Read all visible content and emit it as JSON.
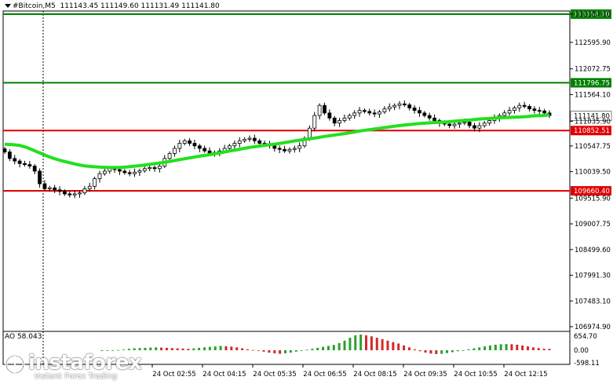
{
  "header": {
    "symbol": "#Bitcoin,M5",
    "ohlc": "111143.45 111149.60 111131.49 111141.80"
  },
  "ao": {
    "label": "AO 58.043",
    "scale": [
      "654.70",
      "0.00",
      "-598.11"
    ]
  },
  "watermark": {
    "brand": "instaforex",
    "tagline": "Instant Forex Trading"
  },
  "chart_data": {
    "type": "candlestick",
    "title": "",
    "y_ticks": [
      "113154.10",
      "112595.90",
      "112072.75",
      "111564.10",
      "111035.90",
      "110547.75",
      "110039.50",
      "109515.90",
      "109007.75",
      "108499.60",
      "107991.30",
      "107483.10",
      "106974.90"
    ],
    "y_tick_values": [
      113154.1,
      112595.9,
      112072.75,
      111564.1,
      111035.9,
      110547.75,
      110039.5,
      109515.9,
      109007.75,
      108499.6,
      107991.3,
      107483.1,
      106974.9
    ],
    "ylim": [
      106974.9,
      113154.1
    ],
    "x_ticks": [
      "24 Oct 02:55",
      "24 Oct 04:15",
      "24 Oct 05:35",
      "24 Oct 06:55",
      "24 Oct 08:15",
      "24 Oct 09:35",
      "24 Oct 10:55",
      "24 Oct 12:15"
    ],
    "levels": [
      {
        "value": 113154.1,
        "label": "113154.10",
        "color": "#008000"
      },
      {
        "value": 111796.75,
        "label": "111796.75",
        "color": "#008000"
      },
      {
        "value": 110852.51,
        "label": "110852.51",
        "color": "#e00000"
      },
      {
        "value": 109660.4,
        "label": "109660.40",
        "color": "#e00000"
      }
    ],
    "current_price": {
      "value": 111141.8,
      "label": "111141.80"
    },
    "close_series": [
      110430,
      110300,
      110250,
      110200,
      110180,
      110150,
      110050,
      109800,
      109700,
      109720,
      109680,
      109650,
      109600,
      109580,
      109600,
      109620,
      109700,
      109750,
      109900,
      110000,
      110050,
      110100,
      110080,
      110050,
      110020,
      110000,
      110030,
      110060,
      110100,
      110120,
      110100,
      110150,
      110300,
      110400,
      110500,
      110600,
      110650,
      110600,
      110550,
      110500,
      110450,
      110400,
      110420,
      110450,
      110500,
      110550,
      110600,
      110650,
      110680,
      110700,
      110650,
      110600,
      110580,
      110550,
      110500,
      110480,
      110450,
      110480,
      110500,
      110550,
      110700,
      110900,
      111150,
      111350,
      111200,
      111100,
      111000,
      111050,
      111100,
      111150,
      111200,
      111250,
      111230,
      111200,
      111180,
      111220,
      111280,
      111320,
      111350,
      111380,
      111360,
      111300,
      111250,
      111200,
      111150,
      111100,
      111050,
      111000,
      110980,
      110950,
      110980,
      111000,
      111020,
      110950,
      110900,
      110950,
      111000,
      111050,
      111100,
      111150,
      111200,
      111250,
      111300,
      111350,
      111330,
      111280,
      111250,
      111240,
      111200,
      111150
    ],
    "ma_series": [
      110580,
      110575,
      110560,
      110520,
      110460,
      110400,
      110340,
      110290,
      110250,
      110215,
      110180,
      110155,
      110140,
      110130,
      110125,
      110120,
      110125,
      110135,
      110150,
      110165,
      110185,
      110205,
      110225,
      110250,
      110275,
      110300,
      110325,
      110350,
      110370,
      110395,
      110420,
      110450,
      110475,
      110500,
      110525,
      110545,
      110565,
      110580,
      110600,
      110625,
      110650,
      110670,
      110690,
      110710,
      110735,
      110755,
      110775,
      110795,
      110820,
      110845,
      110865,
      110885,
      110905,
      110925,
      110945,
      110960,
      110975,
      110990,
      111000,
      111010,
      111015,
      111025,
      111040,
      111050,
      111060,
      111075,
      111085,
      111095,
      111105,
      111110,
      111115,
      111120,
      111130,
      111145,
      111150,
      111160
    ],
    "ao_series": [
      -30,
      -20,
      -10,
      10,
      30,
      60,
      80,
      90,
      100,
      110,
      120,
      110,
      100,
      90,
      80,
      70,
      60,
      80,
      100,
      120,
      140,
      160,
      180,
      170,
      150,
      120,
      80,
      40,
      10,
      -20,
      -60,
      -100,
      -130,
      -150,
      -130,
      -100,
      -60,
      -20,
      20,
      60,
      100,
      140,
      180,
      220,
      300,
      400,
      520,
      620,
      654,
      620,
      580,
      520,
      460,
      400,
      340,
      280,
      200,
      120,
      40,
      -40,
      -100,
      -140,
      -160,
      -150,
      -120,
      -80,
      -40,
      0,
      40,
      80,
      120,
      160,
      200,
      230,
      250,
      260,
      250,
      230,
      200,
      160,
      120,
      90,
      60,
      58
    ]
  }
}
